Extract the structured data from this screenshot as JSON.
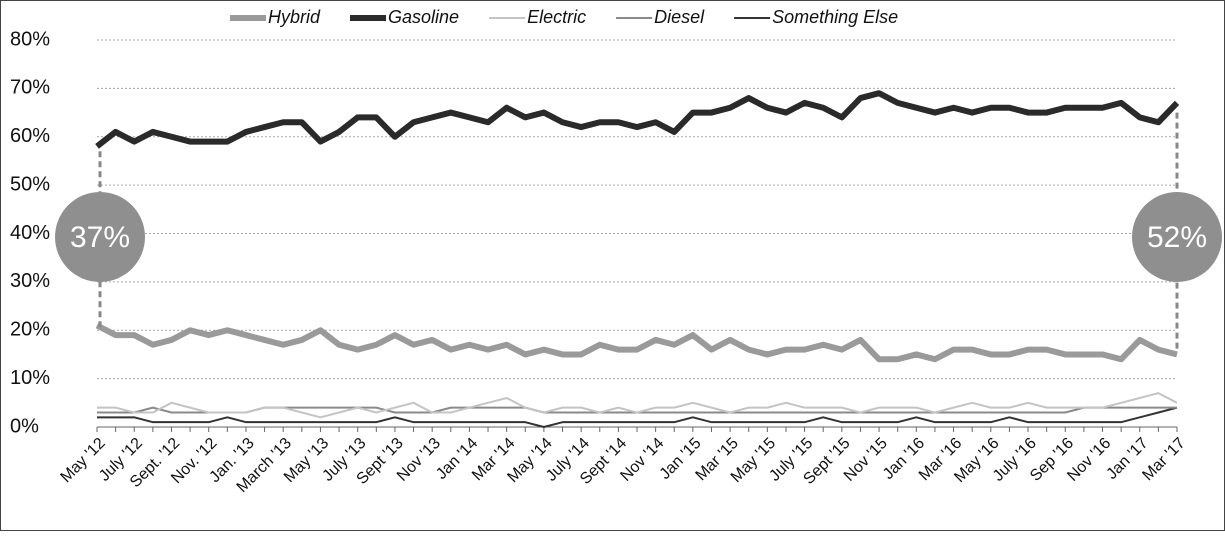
{
  "chart_data": {
    "type": "line",
    "categories": [
      "May '12",
      null,
      "July '12",
      null,
      "Sept. '12",
      null,
      "Nov. '12",
      null,
      "Jan. '13",
      null,
      "March '13",
      null,
      "May '13",
      null,
      "July '13",
      null,
      "Sept '13",
      null,
      "Nov '13",
      null,
      "Jan '14",
      null,
      "Mar '14",
      null,
      "May '14",
      null,
      "July '14",
      null,
      "Sept '14",
      null,
      "Nov '14",
      null,
      "Jan '15",
      null,
      "Mar '15",
      null,
      "May '15",
      null,
      "July '15",
      null,
      "Sept '15",
      null,
      "Nov '15",
      null,
      "Jan '16",
      null,
      "Mar '16",
      null,
      "May '16",
      null,
      "July '16",
      null,
      "Sep '16",
      null,
      "Nov '16",
      null,
      "Jan '17",
      null,
      "Mar '17"
    ],
    "series": [
      {
        "name": "Hybrid",
        "color": "#9a9a9a",
        "width": 6,
        "values": [
          21,
          19,
          19,
          17,
          18,
          20,
          19,
          20,
          19,
          18,
          17,
          18,
          20,
          17,
          16,
          17,
          19,
          17,
          18,
          16,
          17,
          16,
          17,
          15,
          16,
          15,
          15,
          17,
          16,
          16,
          18,
          17,
          19,
          16,
          18,
          16,
          15,
          16,
          16,
          17,
          16,
          18,
          14,
          14,
          15,
          14,
          16,
          16,
          15,
          15,
          16,
          16,
          15,
          15,
          15,
          14,
          18,
          16,
          15
        ]
      },
      {
        "name": "Gasoline",
        "color": "#2a2a2a",
        "width": 6,
        "values": [
          58,
          61,
          59,
          61,
          60,
          59,
          59,
          59,
          61,
          62,
          63,
          63,
          59,
          61,
          64,
          64,
          60,
          63,
          64,
          65,
          64,
          63,
          66,
          64,
          65,
          63,
          62,
          63,
          63,
          62,
          63,
          61,
          65,
          65,
          66,
          68,
          66,
          65,
          67,
          66,
          64,
          68,
          69,
          67,
          66,
          65,
          66,
          65,
          66,
          66,
          65,
          65,
          66,
          66,
          66,
          67,
          64,
          63,
          67
        ]
      },
      {
        "name": "Electric",
        "color": "#c4c4c4",
        "width": 2,
        "values": [
          4,
          4,
          3,
          3,
          5,
          4,
          3,
          3,
          3,
          4,
          4,
          3,
          2,
          3,
          4,
          3,
          4,
          5,
          3,
          3,
          4,
          5,
          6,
          4,
          3,
          4,
          4,
          3,
          4,
          3,
          4,
          4,
          5,
          4,
          3,
          4,
          4,
          5,
          4,
          4,
          4,
          3,
          4,
          4,
          4,
          3,
          4,
          5,
          4,
          4,
          5,
          4,
          4,
          4,
          4,
          5,
          6,
          7,
          5
        ]
      },
      {
        "name": "Diesel",
        "color": "#8a8a8a",
        "width": 2,
        "values": [
          3,
          3,
          3,
          4,
          3,
          3,
          3,
          3,
          3,
          4,
          4,
          4,
          4,
          4,
          4,
          4,
          3,
          3,
          3,
          4,
          4,
          4,
          4,
          4,
          3,
          3,
          3,
          3,
          3,
          3,
          3,
          3,
          3,
          3,
          3,
          3,
          3,
          3,
          3,
          3,
          3,
          3,
          3,
          3,
          3,
          3,
          3,
          3,
          3,
          3,
          3,
          3,
          3,
          4,
          4,
          4,
          4,
          4,
          4
        ]
      },
      {
        "name": "Something Else",
        "color": "#333333",
        "width": 2,
        "values": [
          2,
          2,
          2,
          1,
          1,
          1,
          1,
          2,
          1,
          1,
          1,
          1,
          1,
          1,
          1,
          1,
          2,
          1,
          1,
          1,
          1,
          1,
          1,
          1,
          0,
          1,
          1,
          1,
          1,
          1,
          1,
          1,
          2,
          1,
          1,
          1,
          1,
          1,
          1,
          2,
          1,
          1,
          1,
          1,
          2,
          1,
          1,
          1,
          1,
          2,
          1,
          1,
          1,
          1,
          1,
          1,
          2,
          3,
          4
        ]
      }
    ],
    "ylim": [
      0,
      80
    ],
    "yticks": [
      {
        "value": 0,
        "label": "0%"
      },
      {
        "value": 10,
        "label": "10%"
      },
      {
        "value": 20,
        "label": "20%"
      },
      {
        "value": 30,
        "label": "30%"
      },
      {
        "value": 40,
        "label": "40%"
      },
      {
        "value": 50,
        "label": "50%"
      },
      {
        "value": 60,
        "label": "60%"
      },
      {
        "value": 70,
        "label": "70%"
      },
      {
        "value": 80,
        "label": "80%"
      }
    ],
    "grid": true,
    "legend": "top",
    "annotations": [
      "37%",
      "52%"
    ]
  }
}
